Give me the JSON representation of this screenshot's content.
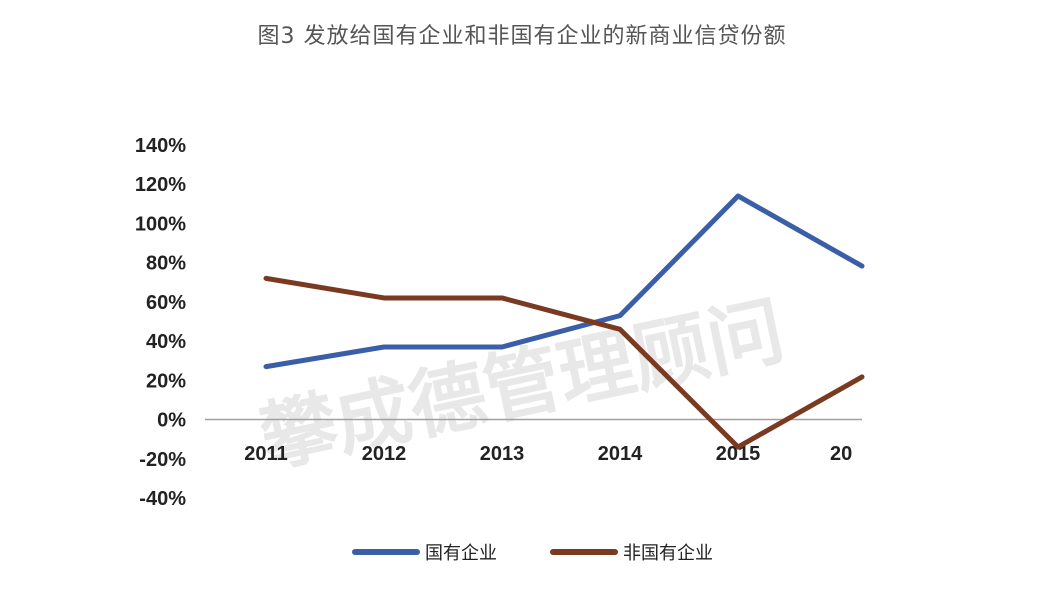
{
  "title": "图3 发放给国有企业和非国有企业的新商业信贷份额",
  "watermark": "攀成德管理顾问",
  "chart_data": {
    "type": "line",
    "title": "图3 发放给国有企业和非国有企业的新商业信贷份额",
    "categories": [
      "2011",
      "2012",
      "2013",
      "2014",
      "2015",
      "20"
    ],
    "yticks": [
      "140%",
      "120%",
      "100%",
      "80%",
      "60%",
      "40%",
      "20%",
      "0%",
      "-20%",
      "-40%"
    ],
    "ylim": [
      -40,
      140
    ],
    "series": [
      {
        "name": "国有企业",
        "color": "#3a5fa8",
        "values": [
          27,
          37,
          37,
          53,
          114,
          80
        ]
      },
      {
        "name": "非国有企业",
        "color": "#7a3a22",
        "values": [
          72,
          62,
          62,
          46,
          -14,
          20
        ]
      }
    ],
    "legend_position": "bottom",
    "grid": false
  }
}
